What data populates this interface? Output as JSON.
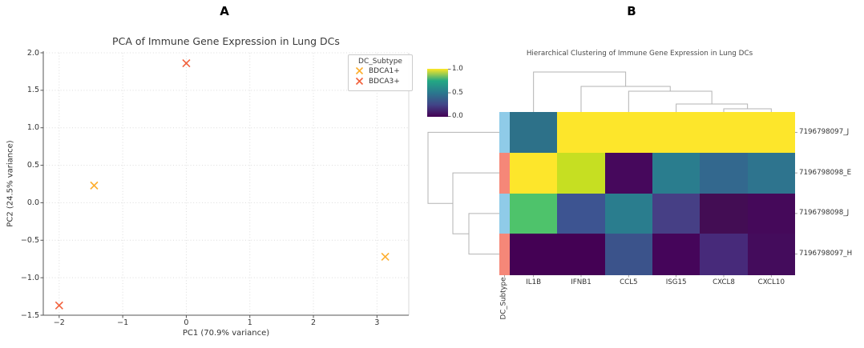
{
  "panels": {
    "a": {
      "label": "A"
    },
    "b": {
      "label": "B"
    }
  },
  "chart_data": [
    {
      "type": "scatter",
      "panel": "A",
      "title": "PCA of Immune Gene Expression in Lung DCs",
      "xlabel": "PC1 (70.9% variance)",
      "ylabel": "PC2 (24.5% variance)",
      "xlim": [
        -2.25,
        3.5
      ],
      "ylim": [
        -1.5,
        2.0
      ],
      "xticks": [
        -2,
        -1,
        0,
        1,
        2,
        3
      ],
      "xtick_labels": [
        "−2",
        "−1",
        "0",
        "1",
        "2",
        "3"
      ],
      "yticks": [
        2.0,
        1.5,
        1.0,
        0.5,
        0.0,
        -0.5,
        -1.0,
        -1.5
      ],
      "ytick_labels": [
        "2.0",
        "1.5",
        "1.0",
        "0.5",
        "0.0",
        "−0.5",
        "−1.0",
        "−1.5"
      ],
      "grid": "dotted",
      "legend": {
        "title": "DC_Subtype",
        "position": "upper right"
      },
      "series": [
        {
          "name": "BDCA1+",
          "marker": "x",
          "color": "#FDAE2E",
          "points": [
            [
              -1.45,
              0.23
            ],
            [
              3.13,
              -0.72
            ]
          ]
        },
        {
          "name": "BDCA3+",
          "marker": "x",
          "color": "#F2613C",
          "points": [
            [
              0.0,
              1.86
            ],
            [
              -2.0,
              -1.37
            ]
          ]
        }
      ]
    },
    {
      "type": "heatmap",
      "panel": "B",
      "title": "Hierarchical Clustering of Immune Gene Expression in Lung DCs",
      "columns": [
        "IL1B",
        "IFNB1",
        "CCL5",
        "ISG15",
        "CXCL8",
        "CXCL10"
      ],
      "rows": [
        "7196798097_J",
        "7196798098_E",
        "7196798098_J",
        "7196798097_H"
      ],
      "values": [
        [
          0.45,
          1.0,
          1.0,
          1.0,
          1.0,
          1.0
        ],
        [
          1.0,
          0.85,
          0.0,
          0.48,
          0.38,
          0.44
        ],
        [
          0.62,
          0.27,
          0.47,
          0.21,
          0.01,
          0.02
        ],
        [
          0.0,
          0.0,
          0.28,
          0.01,
          0.1,
          0.03
        ]
      ],
      "cell_colors": [
        [
          "#2D7189",
          "#FDE62B",
          "#FDE62B",
          "#FDE62B",
          "#FDE62B",
          "#FDE62B"
        ],
        [
          "#FDE62B",
          "#C6DF22",
          "#46085C",
          "#2A7D8E",
          "#33688E",
          "#2E748E"
        ],
        [
          "#4EC36B",
          "#3D5491",
          "#2A7D8E",
          "#463F85",
          "#430D54",
          "#45095A"
        ],
        [
          "#440154",
          "#440154",
          "#3B538B",
          "#45055A",
          "#472A7A",
          "#440C5C"
        ]
      ],
      "colormap": "viridis",
      "colorbar": {
        "min": 0.0,
        "max": 1.0,
        "tick_labels": [
          "1.0",
          "0.5",
          "0.0"
        ]
      },
      "row_annotation": {
        "label": "DC_Subtype",
        "colors": [
          "#8FCBE8",
          "#F58778",
          "#8FCBE8",
          "#F58778"
        ]
      },
      "row_dendrogram_structure": "(7196798097_J,(7196798098_E,(7196798098_J,7196798097_H)))",
      "col_dendrogram_structure": "(IL1B,(IFNB1,(CCL5,(ISG15,(CXCL8,CXCL10)))))"
    }
  ]
}
